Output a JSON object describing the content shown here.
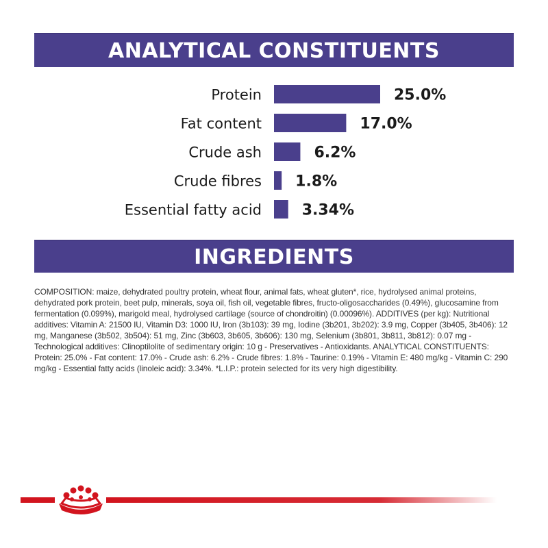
{
  "analytical_title": "ANALYTICAL CONSTITUENTS",
  "ingredients_title": "INGREDIENTS",
  "composition": "COMPOSITION: maize, dehydrated poultry protein, wheat flour, animal fats, wheat gluten*, rice, hydrolysed animal proteins, dehydrated pork protein, beet pulp, minerals, soya oil, fish oil, vegetable fibres, fructo-oligosaccharides (0.49%), glucosamine from fermentation (0.099%), marigold meal, hydrolysed cartilage (source of chondroitin) (0.00096%). ADDITIVES (per kg): Nutritional additives: Vitamin A: 21500 IU, Vitamin D3: 1000 IU, Iron (3b103): 39 mg, Iodine (3b201, 3b202): 3.9 mg, Copper (3b405, 3b406): 12 mg, Manganese (3b502, 3b504): 51 mg, Zinc (3b603, 3b605, 3b606): 130 mg, Selenium (3b801, 3b811, 3b812): 0.07 mg - Technological additives: Clinoptilolite of sedimentary origin: 10 g - Preservatives - Antioxidants. ANALYTICAL CONSTITUENTS: Protein: 25.0% - Fat content: 17.0% - Crude ash: 6.2% - Crude fibres: 1.8% - Taurine: 0.19% - Vitamin E: 480 mg/kg - Vitamin C: 290 mg/kg - Essential fatty acids (linoleic acid): 3.34%. *L.I.P.: protein selected for its very high digestibility.",
  "colors": {
    "bar": "#4a3f8c",
    "banner": "#4a3f8c",
    "brand_red": "#d2141e"
  },
  "logo_icon": "royal-canin-crown-icon",
  "chart_data": {
    "type": "bar",
    "orientation": "horizontal",
    "categories": [
      "Protein",
      "Fat content",
      "Crude ash",
      "Crude fibres",
      "Essential fatty acid"
    ],
    "values": [
      25.0,
      17.0,
      6.2,
      1.8,
      3.34
    ],
    "labels": [
      "25.0%",
      "17.0%",
      "6.2%",
      "1.8%",
      "3.34%"
    ],
    "xlim": [
      0,
      25
    ],
    "grid": false,
    "legend": "none"
  }
}
